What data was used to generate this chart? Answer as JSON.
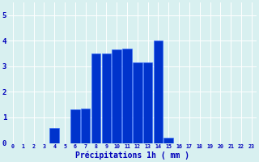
{
  "hours": [
    0,
    1,
    2,
    3,
    4,
    5,
    6,
    7,
    8,
    9,
    10,
    11,
    12,
    13,
    14,
    15,
    16,
    17,
    18,
    19,
    20,
    21,
    22,
    23
  ],
  "values": [
    0,
    0,
    0,
    0,
    0.6,
    0,
    1.3,
    1.35,
    3.5,
    3.5,
    3.65,
    3.7,
    3.15,
    3.15,
    4.0,
    0.2,
    0,
    0,
    0,
    0,
    0,
    0,
    0,
    0
  ],
  "bar_color": "#0033cc",
  "bar_edge_color": "#3366ff",
  "background_color": "#d8f0f0",
  "grid_color": "#ffffff",
  "xlabel": "Précipitations 1h ( mm )",
  "xlabel_color": "#0000bb",
  "tick_color": "#0000bb",
  "ylim": [
    0,
    5.5
  ],
  "yticks": [
    0,
    1,
    2,
    3,
    4,
    5
  ]
}
